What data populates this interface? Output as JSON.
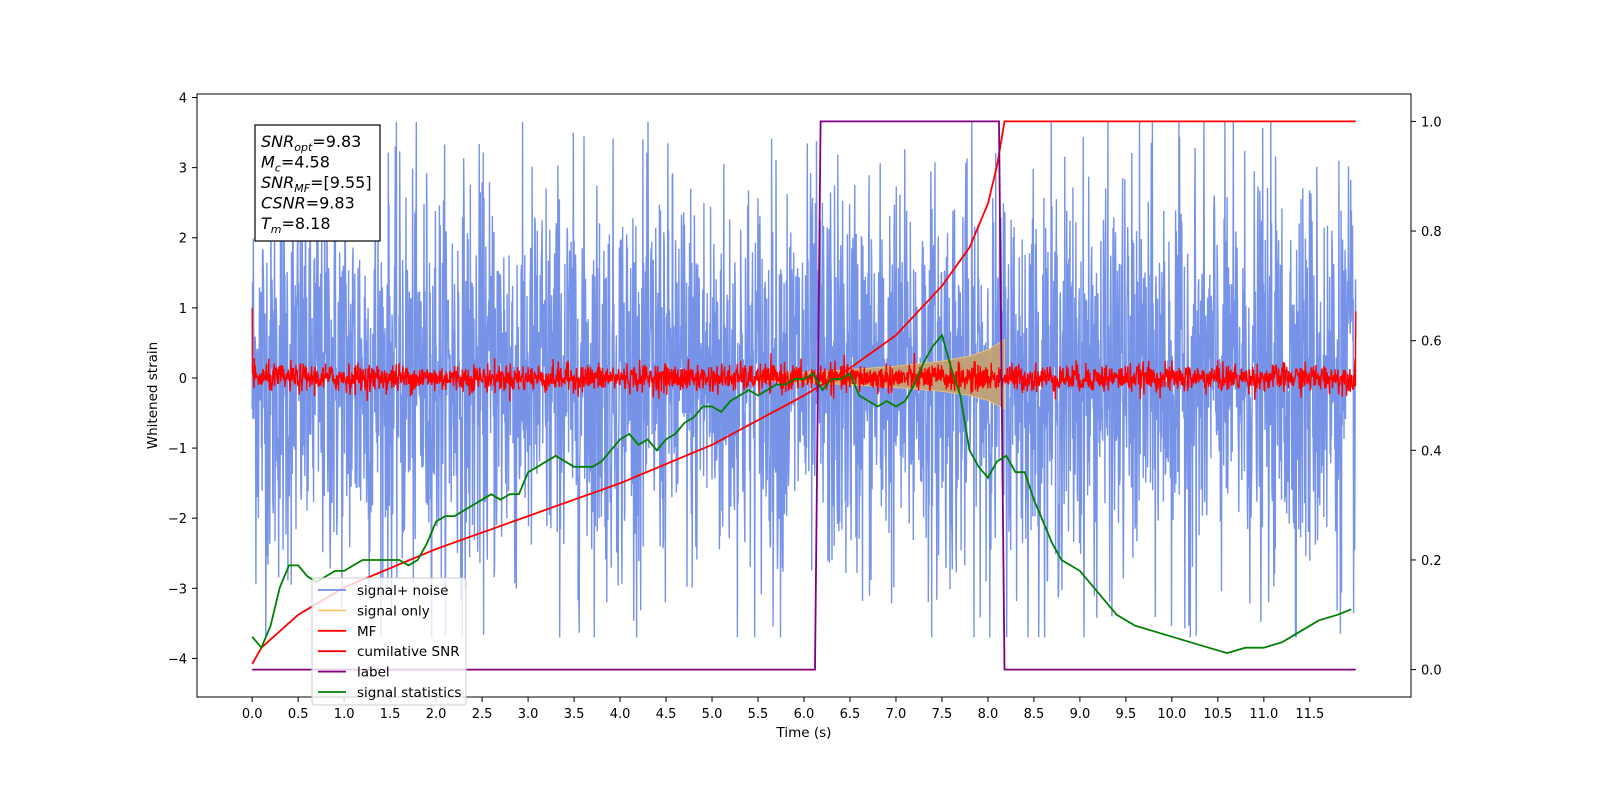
{
  "chart_data": {
    "type": "line",
    "xlabel": "Time (s)",
    "ylabel": "Whitened strain",
    "xlim": [
      -0.6,
      12.6
    ],
    "ylim": [
      -4.55,
      4.05
    ],
    "y2lim": [
      -0.05,
      1.05
    ],
    "xticks": [
      "0.0",
      "0.5",
      "1.0",
      "1.5",
      "2.0",
      "2.5",
      "3.0",
      "3.5",
      "4.0",
      "4.5",
      "5.0",
      "5.5",
      "6.0",
      "6.5",
      "7.0",
      "7.5",
      "8.0",
      "8.5",
      "9.0",
      "9.5",
      "10.0",
      "10.5",
      "11.0",
      "11.5"
    ],
    "xtick_values": [
      0,
      0.5,
      1,
      1.5,
      2,
      2.5,
      3,
      3.5,
      4,
      4.5,
      5,
      5.5,
      6,
      6.5,
      7,
      7.5,
      8,
      8.5,
      9,
      9.5,
      10,
      10.5,
      11,
      11.5
    ],
    "yticks": [
      "4",
      "3",
      "2",
      "1",
      "0",
      "−1",
      "−2",
      "−3",
      "−4"
    ],
    "ytick_values": [
      4,
      3,
      2,
      1,
      0,
      -1,
      -2,
      -3,
      -4
    ],
    "y2ticks": [
      "1.0",
      "0.8",
      "0.6",
      "0.4",
      "0.2",
      "0.0"
    ],
    "y2tick_values": [
      1.0,
      0.8,
      0.6,
      0.4,
      0.2,
      0.0
    ],
    "grid": false,
    "legend_position": "lower-left",
    "annotation": [
      {
        "main": "SNR",
        "sub": "opt",
        "rest": "=9.83"
      },
      {
        "main": "M",
        "sub": "c",
        "rest": "=4.58"
      },
      {
        "main": "SNR",
        "sub": "MF",
        "rest": "=[9.55]"
      },
      {
        "main": "CSNR",
        "sub": "",
        "rest": "=9.83"
      },
      {
        "main": "T",
        "sub": "m",
        "rest": "=8.18"
      }
    ],
    "series": [
      {
        "name": "signal+ noise",
        "color": "#6f8de6",
        "axis": "left",
        "kind": "noise",
        "x_range": [
          0,
          12.0
        ],
        "amplitude_envelope": 2.6,
        "peak_max": 3.65,
        "peak_min": -3.7
      },
      {
        "name": "signal only",
        "color": "#f5c772",
        "axis": "left",
        "kind": "chirp-envelope",
        "x": [
          5.5,
          6.0,
          6.5,
          7.0,
          7.5,
          7.8,
          8.0,
          8.18
        ],
        "amplitude": [
          0.05,
          0.08,
          0.12,
          0.17,
          0.24,
          0.31,
          0.4,
          0.55
        ]
      },
      {
        "name": "MF",
        "color": "#ff0000",
        "axis": "left",
        "kind": "noise",
        "x_range": [
          0,
          12.0
        ],
        "amplitude_envelope": 0.18,
        "edge_start": 1.0,
        "edge_end": 0.95
      },
      {
        "name": "cumilative SNR",
        "color": "#ff0000",
        "axis": "right",
        "x": [
          0.0,
          0.1,
          0.5,
          1.0,
          2.0,
          3.0,
          4.0,
          5.0,
          6.0,
          6.5,
          7.0,
          7.5,
          7.8,
          8.0,
          8.1,
          8.18,
          12.0
        ],
        "values": [
          0.01,
          0.04,
          0.1,
          0.15,
          0.22,
          0.28,
          0.34,
          0.41,
          0.5,
          0.55,
          0.61,
          0.7,
          0.77,
          0.85,
          0.92,
          1.0,
          1.0
        ]
      },
      {
        "name": "label",
        "color": "#800080",
        "axis": "right",
        "x": [
          0.0,
          6.12,
          6.18,
          8.12,
          8.18,
          12.0
        ],
        "values": [
          0.0,
          0.0,
          1.0,
          1.0,
          0.0,
          0.0
        ]
      },
      {
        "name": "signal statistics",
        "color": "#008000",
        "axis": "right",
        "x": [
          0.0,
          0.1,
          0.2,
          0.3,
          0.4,
          0.5,
          0.6,
          0.7,
          0.8,
          0.9,
          1.0,
          1.1,
          1.2,
          1.3,
          1.4,
          1.5,
          1.6,
          1.7,
          1.8,
          1.9,
          2.0,
          2.1,
          2.2,
          2.3,
          2.4,
          2.5,
          2.6,
          2.7,
          2.8,
          2.9,
          3.0,
          3.1,
          3.2,
          3.3,
          3.4,
          3.5,
          3.6,
          3.7,
          3.8,
          3.9,
          4.0,
          4.1,
          4.2,
          4.3,
          4.4,
          4.5,
          4.6,
          4.7,
          4.8,
          4.9,
          5.0,
          5.1,
          5.2,
          5.3,
          5.4,
          5.5,
          5.6,
          5.7,
          5.8,
          5.9,
          6.0,
          6.1,
          6.2,
          6.3,
          6.4,
          6.5,
          6.6,
          6.7,
          6.8,
          6.9,
          7.0,
          7.1,
          7.2,
          7.3,
          7.4,
          7.5,
          7.6,
          7.7,
          7.8,
          7.9,
          8.0,
          8.1,
          8.2,
          8.3,
          8.4,
          8.5,
          8.6,
          8.7,
          8.8,
          8.9,
          9.0,
          9.2,
          9.4,
          9.6,
          9.8,
          10.0,
          10.2,
          10.4,
          10.6,
          10.8,
          11.0,
          11.2,
          11.4,
          11.6,
          11.8,
          11.95
        ],
        "values": [
          0.06,
          0.04,
          0.08,
          0.15,
          0.19,
          0.19,
          0.17,
          0.16,
          0.17,
          0.18,
          0.18,
          0.19,
          0.2,
          0.2,
          0.2,
          0.2,
          0.2,
          0.19,
          0.2,
          0.23,
          0.27,
          0.28,
          0.28,
          0.29,
          0.3,
          0.31,
          0.32,
          0.31,
          0.32,
          0.32,
          0.36,
          0.37,
          0.38,
          0.39,
          0.38,
          0.37,
          0.37,
          0.37,
          0.38,
          0.4,
          0.42,
          0.43,
          0.41,
          0.42,
          0.4,
          0.42,
          0.43,
          0.45,
          0.46,
          0.48,
          0.48,
          0.47,
          0.49,
          0.5,
          0.51,
          0.5,
          0.51,
          0.52,
          0.52,
          0.53,
          0.53,
          0.54,
          0.51,
          0.53,
          0.53,
          0.54,
          0.5,
          0.49,
          0.48,
          0.49,
          0.48,
          0.49,
          0.52,
          0.56,
          0.59,
          0.61,
          0.55,
          0.5,
          0.4,
          0.37,
          0.35,
          0.38,
          0.39,
          0.36,
          0.36,
          0.31,
          0.27,
          0.23,
          0.2,
          0.19,
          0.18,
          0.14,
          0.1,
          0.08,
          0.07,
          0.06,
          0.05,
          0.04,
          0.03,
          0.04,
          0.04,
          0.05,
          0.07,
          0.09,
          0.1,
          0.11
        ]
      }
    ]
  }
}
